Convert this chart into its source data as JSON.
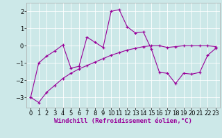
{
  "xlabel": "Windchill (Refroidissement éolien,°C)",
  "bg_color": "#cce8e8",
  "line_color": "#990099",
  "xlim": [
    -0.5,
    23.5
  ],
  "ylim": [
    -3.6,
    2.5
  ],
  "xticks": [
    0,
    1,
    2,
    3,
    4,
    5,
    6,
    7,
    8,
    9,
    10,
    11,
    12,
    13,
    14,
    15,
    16,
    17,
    18,
    19,
    20,
    21,
    22,
    23
  ],
  "yticks": [
    -3,
    -2,
    -1,
    0,
    1,
    2
  ],
  "series1_x": [
    0,
    1,
    2,
    3,
    4,
    5,
    6,
    7,
    8,
    9,
    10,
    11,
    12,
    13,
    14,
    15,
    16,
    17,
    18,
    19,
    20,
    21,
    22,
    23
  ],
  "series1_y": [
    -3.0,
    -1.0,
    -0.6,
    -0.3,
    0.05,
    -1.3,
    -1.2,
    0.5,
    0.2,
    -0.1,
    2.0,
    2.1,
    1.1,
    0.75,
    0.8,
    -0.2,
    -1.55,
    -1.6,
    -2.2,
    -1.6,
    -1.65,
    -1.55,
    -0.55,
    -0.15
  ],
  "series2_x": [
    0,
    1,
    2,
    3,
    4,
    5,
    6,
    7,
    8,
    9,
    10,
    11,
    12,
    13,
    14,
    15,
    16,
    17,
    18,
    19,
    20,
    21,
    22,
    23
  ],
  "series2_y": [
    -3.0,
    -3.3,
    -2.7,
    -2.3,
    -1.9,
    -1.6,
    -1.35,
    -1.15,
    -0.95,
    -0.75,
    -0.55,
    -0.4,
    -0.25,
    -0.15,
    -0.05,
    0.0,
    0.0,
    -0.1,
    -0.05,
    0.0,
    0.0,
    0.0,
    0.0,
    -0.05
  ],
  "xlabel_fontsize": 6.5,
  "tick_fontsize": 6.0
}
